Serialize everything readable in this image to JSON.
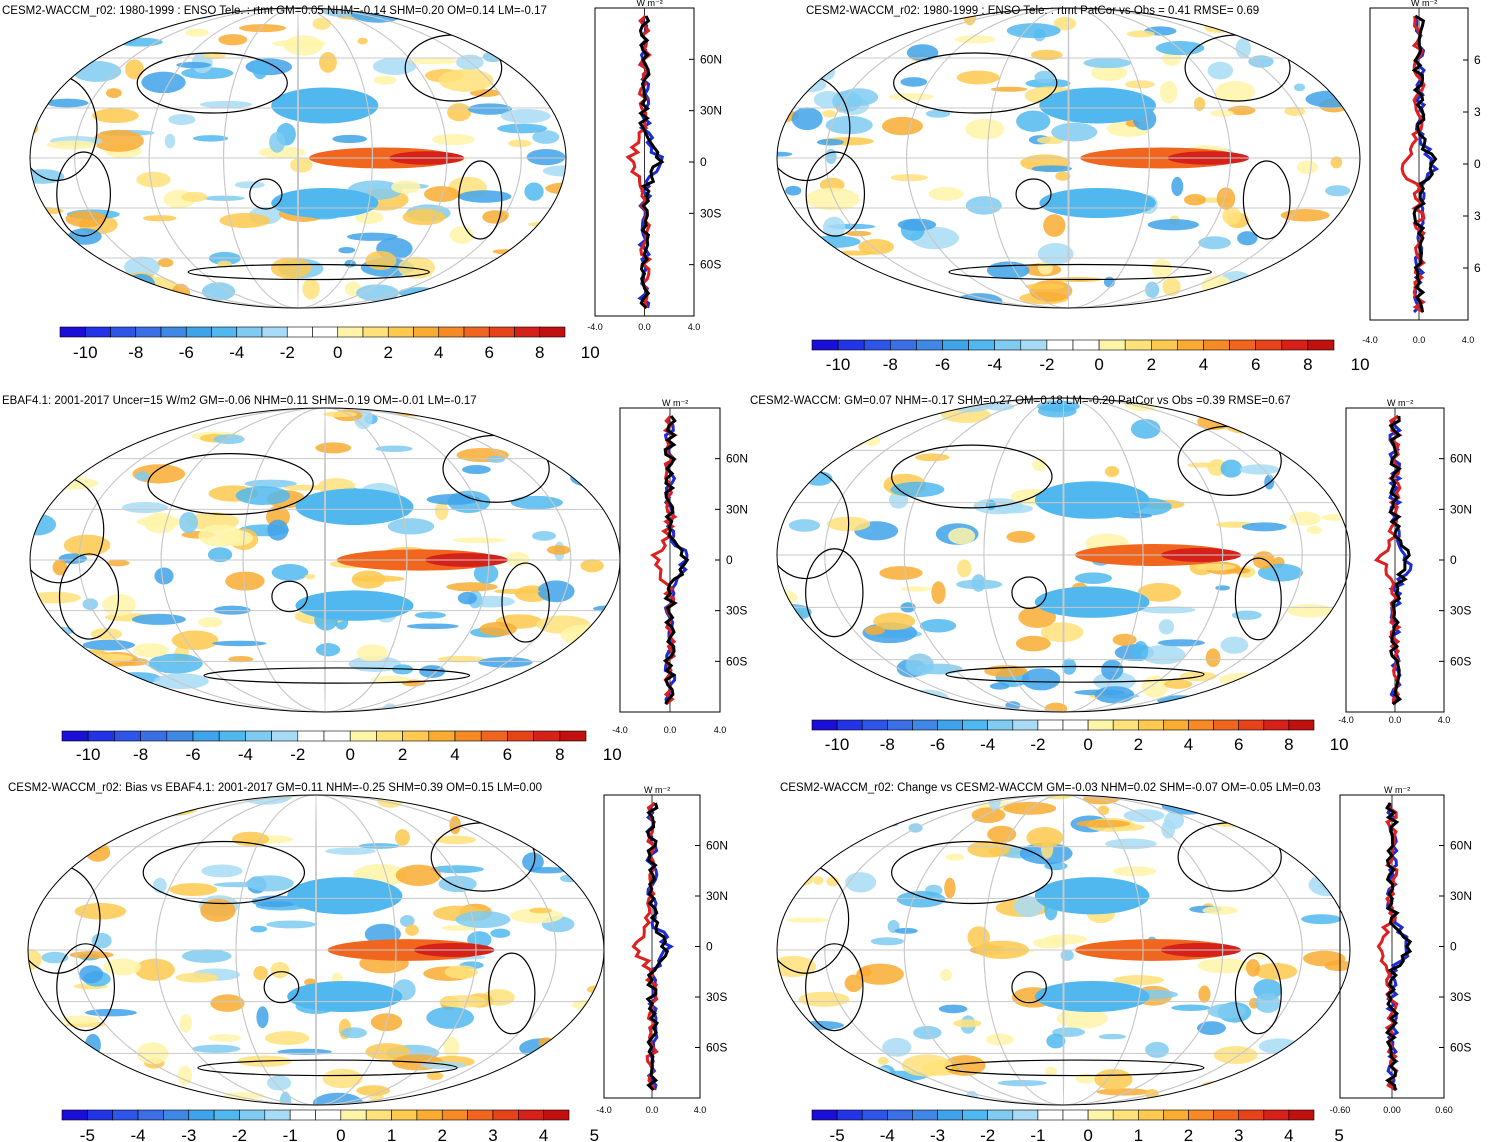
{
  "chart_data": [
    {
      "type": "map",
      "panel": "top-left",
      "title": "CESM2-WACCM_r02: 1980-1999 : ENSO Tele. : rtmt GM=0.05 NHM=-0.14 SHM=0.20 OM=0.14 LM=-0.17",
      "colorbar": {
        "labels": [
          "-10",
          "-8",
          "-6",
          "-4",
          "-2",
          "0",
          "2",
          "4",
          "6",
          "8",
          "10"
        ]
      },
      "zonal_mean": {
        "unit": "W m⁻²",
        "x_ticks": [
          "-4.0",
          "0.0",
          "4.0"
        ],
        "lat_labels": [
          "60N",
          "30N",
          "0",
          "30S",
          "60S"
        ]
      }
    },
    {
      "type": "map",
      "panel": "top-right",
      "title": "CESM2-WACCM_r02: 1980-1999 : ENSO Tele. : rtmt PatCor vs Obs = 0.41 RMSE= 0.69",
      "colorbar": {
        "labels": [
          "-10",
          "-8",
          "-6",
          "-4",
          "-2",
          "0",
          "2",
          "4",
          "6",
          "8",
          "10"
        ]
      },
      "zonal_mean": {
        "unit": "W m⁻²",
        "x_ticks": [
          "-4.0",
          "0.0",
          "4.0"
        ],
        "lat_labels": [
          "6",
          "3",
          "0",
          "3",
          "6"
        ]
      }
    },
    {
      "type": "map",
      "panel": "middle-left",
      "title": "EBAF4.1: 2001-2017 Uncer=15 W/m2 GM=-0.06 NHM=0.11 SHM=-0.19 OM=-0.01 LM=-0.17",
      "colorbar": {
        "labels": [
          "-10",
          "-8",
          "-6",
          "-4",
          "-2",
          "0",
          "2",
          "4",
          "6",
          "8",
          "10"
        ]
      },
      "zonal_mean": {
        "unit": "W m⁻²",
        "x_ticks": [
          "-4.0",
          "0.0",
          "4.0"
        ],
        "lat_labels": [
          "60N",
          "30N",
          "0",
          "30S",
          "60S"
        ]
      }
    },
    {
      "type": "map",
      "panel": "middle-right",
      "title": "CESM2-WACCM: GM=0.07 NHM=-0.17 SHM=0.27 OM=0.18 LM=-0.20 PatCor vs Obs =0.39 RMSE=0.67",
      "colorbar": {
        "labels": [
          "-10",
          "-8",
          "-6",
          "-4",
          "-2",
          "0",
          "2",
          "4",
          "6",
          "8",
          "10"
        ]
      },
      "zonal_mean": {
        "unit": "W m⁻²",
        "x_ticks": [
          "-4.0",
          "0.0",
          "4.0"
        ],
        "lat_labels": [
          "60N",
          "30N",
          "0",
          "30S",
          "60S"
        ]
      }
    },
    {
      "type": "map",
      "panel": "bottom-left",
      "title": "CESM2-WACCM_r02: Bias vs EBAF4.1: 2001-2017 GM=0.11 NHM=-0.25 SHM=0.39 OM=0.15 LM=0.00",
      "colorbar": {
        "labels": [
          "-5",
          "-4",
          "-3",
          "-2",
          "-1",
          "0",
          "1",
          "2",
          "3",
          "4",
          "5"
        ]
      },
      "zonal_mean": {
        "unit": "W m⁻²",
        "x_ticks": [
          "-4.0",
          "0.0",
          "4.0"
        ],
        "lat_labels": [
          "60N",
          "30N",
          "0",
          "30S",
          "60S"
        ]
      }
    },
    {
      "type": "map",
      "panel": "bottom-right",
      "title": "CESM2-WACCM_r02: Change vs CESM2-WACCM GM=-0.03 NHM=0.02 SHM=-0.07 OM=-0.05 LM=0.03",
      "colorbar": {
        "labels": [
          "-5",
          "-4",
          "-3",
          "-2",
          "-1",
          "0",
          "1",
          "2",
          "3",
          "4",
          "5"
        ]
      },
      "zonal_mean": {
        "unit": "W m⁻²",
        "x_ticks": [
          "-0.60",
          "0.00",
          "0.60"
        ],
        "lat_labels": [
          "60N",
          "30N",
          "0",
          "30S",
          "60S"
        ]
      }
    }
  ],
  "palette": [
    "#1a0fd8",
    "#2333e6",
    "#2f55e8",
    "#3a6fe6",
    "#3f88e6",
    "#3fa3ea",
    "#50b8ee",
    "#7fcbf2",
    "#a8dcf6",
    "#ffffff",
    "#ffffff",
    "#fff5a8",
    "#ffe27a",
    "#fdc94e",
    "#f9ab32",
    "#f68a24",
    "#f0661e",
    "#e6431a",
    "#d6201a",
    "#c01010"
  ]
}
